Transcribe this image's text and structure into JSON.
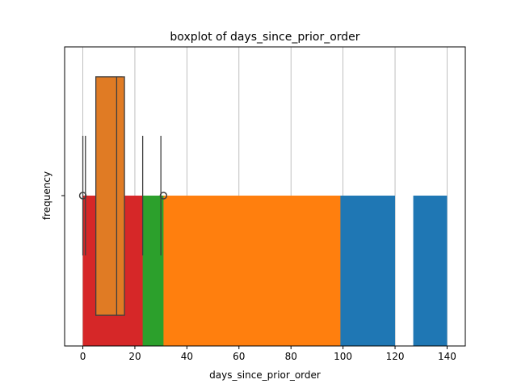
{
  "chart_data": {
    "type": "boxplot",
    "title": "boxplot of days_since_prior_order",
    "xlabel": "days_since_prior_order",
    "ylabel": "frequency",
    "xlim": [
      -7,
      147
    ],
    "xticks": [
      0,
      20,
      40,
      60,
      80,
      100,
      120,
      140
    ],
    "xtick_labels": [
      "0",
      "20",
      "40",
      "60",
      "80",
      "100",
      "120",
      "140"
    ],
    "ytick_labels": [
      ""
    ],
    "grid": "x",
    "bars": [
      {
        "name": "blue",
        "color": "#1f77b4",
        "segments": [
          [
            0,
            120
          ],
          [
            127,
            140
          ]
        ],
        "band": "lower"
      },
      {
        "name": "orange",
        "color": "#ff7f0e",
        "segments": [
          [
            0,
            99
          ]
        ],
        "band": "lower"
      },
      {
        "name": "green",
        "color": "#2ca02c",
        "segments": [
          [
            0,
            31
          ]
        ],
        "band": "lower"
      },
      {
        "name": "red",
        "color": "#d62728",
        "segments": [
          [
            0,
            23
          ]
        ],
        "band": "lower"
      }
    ],
    "boxes": [
      {
        "q1": 5,
        "median": 8,
        "q3": 15,
        "whislo": 1,
        "whishi": 30,
        "color": "#e07b24",
        "flier": 31
      },
      {
        "q1": 5,
        "median": 13,
        "q3": 16,
        "whislo": 0,
        "whishi": 23,
        "color": "#e07b24",
        "flier": 0
      }
    ]
  }
}
